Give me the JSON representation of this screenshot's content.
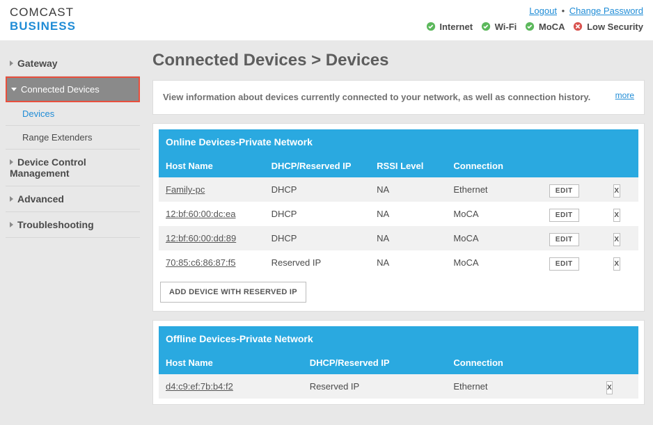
{
  "header": {
    "logo_line1": "COMCAST",
    "logo_line2": "BUSINESS",
    "logout": "Logout",
    "change_password": "Change Password",
    "status": [
      {
        "label": "Internet",
        "ok": true
      },
      {
        "label": "Wi-Fi",
        "ok": true
      },
      {
        "label": "MoCA",
        "ok": true
      },
      {
        "label": "Low Security",
        "ok": false
      }
    ]
  },
  "sidebar": {
    "items": [
      {
        "label": "Gateway",
        "type": "section"
      },
      {
        "label": "Connected Devices",
        "type": "active"
      },
      {
        "label": "Devices",
        "type": "sub",
        "selected": true
      },
      {
        "label": "Range Extenders",
        "type": "sub"
      },
      {
        "label": "Device Control Management",
        "type": "section"
      },
      {
        "label": "Advanced",
        "type": "section"
      },
      {
        "label": "Troubleshooting",
        "type": "section"
      }
    ]
  },
  "page": {
    "title": "Connected Devices > Devices",
    "info_text": "View information about devices currently connected to your network, as well as connection history.",
    "more": "more"
  },
  "online": {
    "title": "Online Devices-Private Network",
    "columns": [
      "Host Name",
      "DHCP/Reserved IP",
      "RSSI Level",
      "Connection"
    ],
    "rows": [
      {
        "host": "Family-pc",
        "dhcp": "DHCP",
        "rssi": "NA",
        "conn": "Ethernet"
      },
      {
        "host": "12:bf:60:00:dc:ea",
        "dhcp": "DHCP",
        "rssi": "NA",
        "conn": "MoCA"
      },
      {
        "host": "12:bf:60:00:dd:89",
        "dhcp": "DHCP",
        "rssi": "NA",
        "conn": "MoCA"
      },
      {
        "host": "70:85:c6:86:87:f5",
        "dhcp": "Reserved IP",
        "rssi": "NA",
        "conn": "MoCA"
      }
    ],
    "edit_label": "EDIT",
    "delete_label": "X",
    "add_button": "ADD DEVICE WITH RESERVED IP"
  },
  "offline": {
    "title": "Offline Devices-Private Network",
    "columns": [
      "Host Name",
      "DHCP/Reserved IP",
      "Connection"
    ],
    "rows": [
      {
        "host": "d4:c9:ef:7b:b4:f2",
        "dhcp": "Reserved IP",
        "conn": "Ethernet"
      }
    ],
    "delete_label": "X"
  },
  "colors": {
    "brand_blue": "#1f8cd6",
    "table_blue": "#2aa9e0",
    "bg_grey": "#e8e8e8",
    "ok_green": "#5cb85c",
    "err_red": "#d9534f",
    "highlight_border": "#e84f3d"
  }
}
